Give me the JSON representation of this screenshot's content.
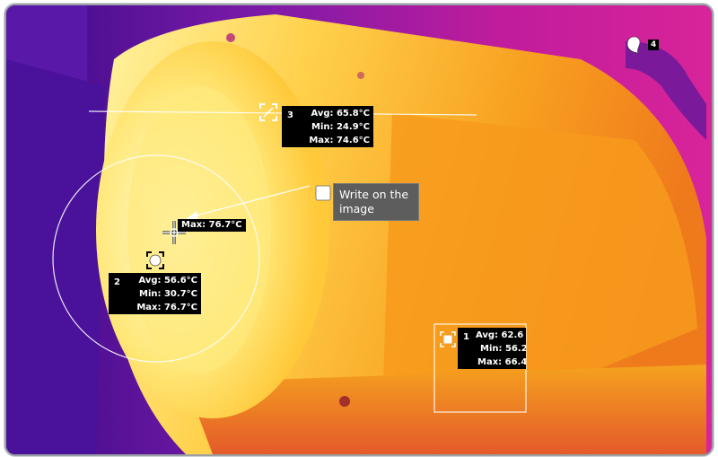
{
  "measurements": {
    "area1": {
      "number": "1",
      "avg": "Avg: 62.6",
      "min": "Min: 56.2",
      "max": "Max: 66.4"
    },
    "circle2": {
      "number": "2",
      "avg": "Avg: 56.6°C",
      "min": "Min: 30.7°C",
      "max": "Max: 76.7°C",
      "hotspot_label": "Max: 76.7°C"
    },
    "line3": {
      "number": "3",
      "avg": "Avg: 65.8°C",
      "min": "Min: 24.9°C",
      "max": "Max: 74.6°C"
    },
    "marker4": {
      "number": "4"
    }
  },
  "annotation": {
    "text": "Write on the image"
  },
  "colors": {
    "palette_cold": "#3a0a86",
    "palette_mid": "#d4209e",
    "palette_warm": "#f59a1a",
    "palette_hot": "#fff07a",
    "overlay_line": "#ffffff",
    "label_bg": "#000000",
    "note_bg": "#5d5d5d"
  },
  "icons": {
    "crosshair": "crosshair-icon",
    "line_tool": "line-tool-icon",
    "circle_tool": "circle-tool-icon",
    "square_tool": "square-tool-icon",
    "note": "note-icon",
    "marker": "marker-drop-icon"
  }
}
